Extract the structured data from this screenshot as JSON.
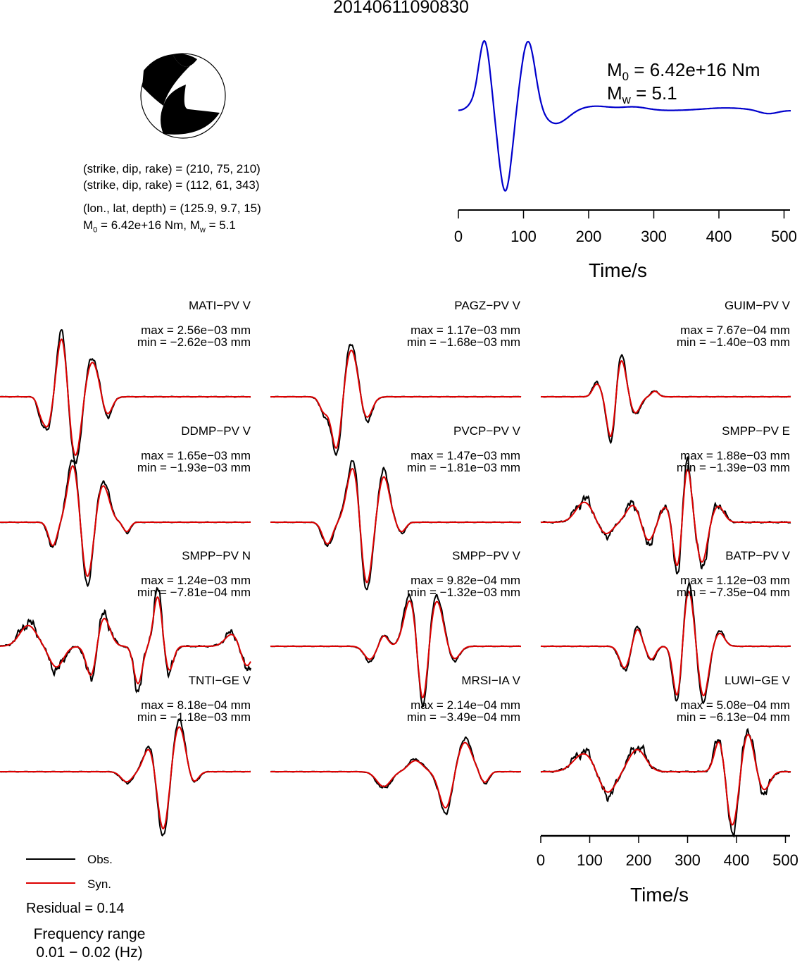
{
  "title": "20140611090830",
  "beachball": {
    "black": "#000000",
    "white": "#ffffff"
  },
  "info": {
    "line1": "(strike, dip, rake) = (210, 75, 210)",
    "line2": "(strike, dip, rake) = (112, 61, 343)",
    "line3": "(lon., lat, depth) = (125.9, 9.7, 15)",
    "line4_m0": "M",
    "line4_m0_sub": "0",
    "line4_mid": " = 6.42e+16 Nm, M",
    "line4_mw_sub": "w",
    "line4_end": " = 5.1"
  },
  "stf": {
    "m0_prefix": "M",
    "m0_sub": "0",
    "m0_value": " = 6.42e+16 Nm",
    "mw_prefix": "M",
    "mw_sub": "w",
    "mw_value": " = 5.1",
    "color": "#0000cc",
    "xlabel": "Time/s",
    "ticks": [
      "0",
      "100",
      "200",
      "300",
      "400",
      "500"
    ]
  },
  "traces": [
    {
      "label": "MATI−PV V",
      "max": "max = 2.56e−03 mm",
      "min": "min = −2.62e−03 mm"
    },
    {
      "label": "PAGZ−PV V",
      "max": "max = 1.17e−03 mm",
      "min": "min = −1.68e−03 mm"
    },
    {
      "label": "GUIM−PV V",
      "max": "max = 7.67e−04 mm",
      "min": "min = −1.40e−03 mm"
    },
    {
      "label": "DDMP−PV V",
      "max": "max = 1.65e−03 mm",
      "min": "min = −1.93e−03 mm"
    },
    {
      "label": "PVCP−PV V",
      "max": "max = 1.47e−03 mm",
      "min": "min = −1.81e−03 mm"
    },
    {
      "label": "SMPP−PV E",
      "max": "max = 1.88e−03 mm",
      "min": "min = −1.39e−03 mm"
    },
    {
      "label": "SMPP−PV N",
      "max": "max = 1.24e−03 mm",
      "min": "min = −7.81e−04 mm"
    },
    {
      "label": "SMPP−PV V",
      "max": "max = 9.82e−04 mm",
      "min": "min = −1.32e−03 mm"
    },
    {
      "label": "BATP−PV V",
      "max": "max = 1.12e−03 mm",
      "min": "min = −7.35e−04 mm"
    },
    {
      "label": "TNTI−GE V",
      "max": "max = 8.18e−04 mm",
      "min": "min = −1.18e−03 mm"
    },
    {
      "label": "MRSI−IA V",
      "max": "max = 2.14e−04 mm",
      "min": "min = −3.49e−04 mm"
    },
    {
      "label": "LUWI−GE V",
      "max": "max = 5.08e−04 mm",
      "min": "min = −6.13e−04 mm"
    }
  ],
  "bottom_axis": {
    "xlabel": "Time/s",
    "ticks": [
      "0",
      "100",
      "200",
      "300",
      "400",
      "500"
    ]
  },
  "legend": {
    "obs": "Obs.",
    "syn": "Syn.",
    "obs_color": "#000000",
    "syn_color": "#dd0000"
  },
  "residual": "Residual = 0.14",
  "freq_line1": "Frequency range",
  "freq_line2": "0.01 − 0.02 (Hz)",
  "chart_data": {
    "type": "line",
    "xlabel": "Time/s",
    "xlim": [
      0,
      510
    ],
    "series": [
      {
        "name": "Obs.",
        "color": "#000000"
      },
      {
        "name": "Syn.",
        "color": "#dd0000"
      }
    ],
    "stf_xlim": [
      0,
      510
    ]
  }
}
